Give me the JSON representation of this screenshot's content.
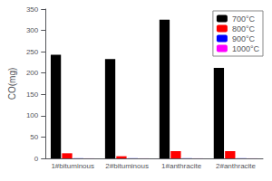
{
  "chart_data": {
    "type": "bar",
    "ylabel": "CO(mg)",
    "categories": [
      "1#bituminous",
      "2#bituminous",
      "1#anthracite",
      "2#anthracite"
    ],
    "series": [
      {
        "name": "700°C",
        "color": "#000000",
        "values": [
          243,
          233,
          325,
          212
        ]
      },
      {
        "name": "800°C",
        "color": "#ff0000",
        "values": [
          12,
          5,
          17,
          17
        ]
      },
      {
        "name": "900°C",
        "color": "#0000ff",
        "values": [
          0.3,
          0.3,
          0.3,
          0.3
        ]
      },
      {
        "name": "1000°C",
        "color": "#ff00ff",
        "values": [
          0.1,
          0.1,
          0.1,
          0.1
        ]
      }
    ],
    "ylim": [
      0,
      350
    ],
    "yticks": [
      0,
      50,
      100,
      150,
      200,
      250,
      300,
      350
    ],
    "grid": false,
    "legend": "upper right"
  }
}
